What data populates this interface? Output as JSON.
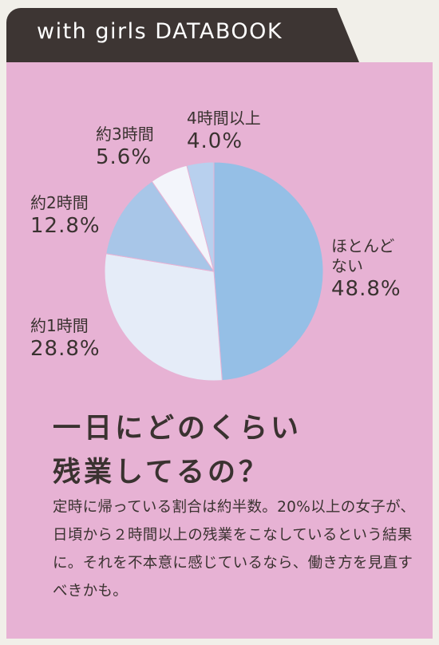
{
  "header": {
    "title": "with girls DATABOOK"
  },
  "colors": {
    "panel": "#e7b2d4",
    "header": "#3d3533",
    "text": "#3a3230"
  },
  "chart_data": {
    "type": "pie",
    "slices": [
      {
        "label": "ほとんどない",
        "value": 48.8,
        "display": "48.8%",
        "color": "#95bfe6"
      },
      {
        "label": "約1時間",
        "value": 28.8,
        "display": "28.8%",
        "color": "#e5ecf8"
      },
      {
        "label": "約2時間",
        "value": 12.8,
        "display": "12.8%",
        "color": "#a8c6e8"
      },
      {
        "label": "約3時間",
        "value": 5.6,
        "display": "5.6%",
        "color": "#f3f5fb"
      },
      {
        "label": "4時間以上",
        "value": 4.0,
        "display": "4.0%",
        "color": "#b8d0ee"
      }
    ],
    "start": "12 o'clock",
    "direction": "clockwise",
    "labels": {
      "s0_name_1": "ほとんど",
      "s0_name_2": "ない",
      "s1_name": "約1時間",
      "s2_name": "約2時間",
      "s3_name": "約3時間",
      "s4_name": "4時間以上"
    }
  },
  "headline": {
    "line1": "一日にどのくらい",
    "line2": "残業してるの？"
  },
  "body": "定時に帰っている割合は約半数。20%以上の女子が、日頃から２時間以上の残業をこなしているという結果に。それを不本意に感じているなら、働き方を見直すべきかも。"
}
